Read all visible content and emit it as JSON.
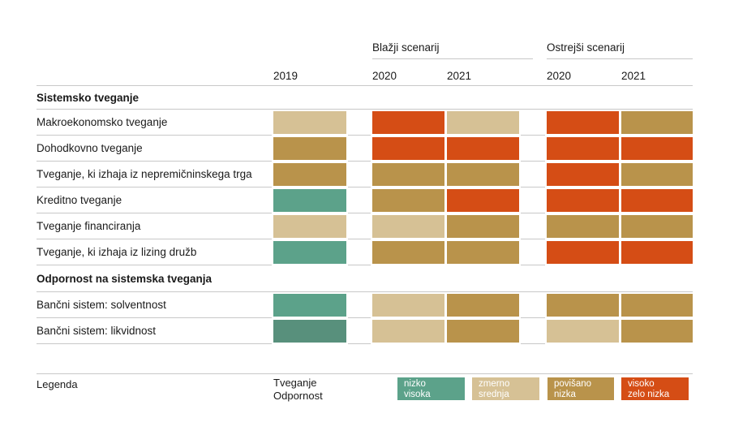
{
  "colors": {
    "teal": "#5CA28A",
    "teal_dark": "#58907C",
    "tan": "#D6C195",
    "gold": "#B9934B",
    "red": "#D54D15",
    "line": "#C8C8C8",
    "text": "#1A1A1A"
  },
  "header": {
    "scenario_groups": [
      {
        "label": "Blažji scenarij"
      },
      {
        "label": "Ostrejši scenarij"
      }
    ],
    "years": [
      "2019",
      "2020",
      "2021",
      "2020",
      "2021"
    ]
  },
  "sections": [
    {
      "title": "Sistemsko tveganje",
      "rows": [
        {
          "label": "Makroekonomsko tveganje",
          "cells": [
            "tan",
            "red",
            "tan",
            "red",
            "gold"
          ]
        },
        {
          "label": "Dohodkovno tveganje",
          "cells": [
            "gold",
            "red",
            "red",
            "red",
            "red"
          ]
        },
        {
          "label": "Tveganje, ki izhaja iz nepremičninskega trga",
          "cells": [
            "gold",
            "gold",
            "gold",
            "red",
            "gold"
          ]
        },
        {
          "label": "Kreditno tveganje",
          "cells": [
            "teal",
            "gold",
            "red",
            "red",
            "red"
          ]
        },
        {
          "label": "Tveganje financiranja",
          "cells": [
            "tan",
            "tan",
            "gold",
            "gold",
            "gold"
          ]
        },
        {
          "label": "Tveganje, ki izhaja iz lizing družb",
          "cells": [
            "teal",
            "gold",
            "gold",
            "red",
            "red"
          ]
        }
      ]
    },
    {
      "title": "Odpornost na sistemska tveganja",
      "rows": [
        {
          "label": "Bančni sistem: solventnost",
          "cells": [
            "teal",
            "tan",
            "gold",
            "gold",
            "gold"
          ]
        },
        {
          "label": "Bančni sistem: likvidnost",
          "cells": [
            "teal_dark",
            "tan",
            "gold",
            "tan",
            "gold"
          ]
        }
      ]
    }
  ],
  "legend": {
    "title": "Legenda",
    "axis_line1": "Tveganje",
    "axis_line2": "Odpornost",
    "items": [
      {
        "color": "teal",
        "risk": "nizko",
        "resilience": "visoka"
      },
      {
        "color": "tan",
        "risk": "zmerno",
        "resilience": "srednja"
      },
      {
        "color": "gold",
        "risk": "povišano",
        "resilience": "nizka"
      },
      {
        "color": "red",
        "risk": "visoko",
        "resilience": "zelo nizka"
      }
    ]
  },
  "chart_data": {
    "type": "heatmap",
    "columns": [
      "2019",
      "Blažji scenarij 2020",
      "Blažji scenarij 2021",
      "Ostrejši scenarij 2020",
      "Ostrejši scenarij 2021"
    ],
    "rows": [
      "Makroekonomsko tveganje",
      "Dohodkovno tveganje",
      "Tveganje, ki izhaja iz nepremičninskega trga",
      "Kreditno tveganje",
      "Tveganje financiranja",
      "Tveganje, ki izhaja iz lizing družb",
      "Bančni sistem: solventnost",
      "Bančni sistem: likvidnost"
    ],
    "values": [
      [
        "zmerno",
        "visoko",
        "zmerno",
        "visoko",
        "povišano"
      ],
      [
        "povišano",
        "visoko",
        "visoko",
        "visoko",
        "visoko"
      ],
      [
        "povišano",
        "povišano",
        "povišano",
        "visoko",
        "povišano"
      ],
      [
        "nizko",
        "povišano",
        "visoko",
        "visoko",
        "visoko"
      ],
      [
        "zmerno",
        "zmerno",
        "povišano",
        "povišano",
        "povišano"
      ],
      [
        "nizko",
        "povišano",
        "povišano",
        "visoko",
        "visoko"
      ],
      [
        "visoka",
        "srednja",
        "nizka",
        "nizka",
        "nizka"
      ],
      [
        "visoka",
        "srednja",
        "nizka",
        "srednja",
        "nizka"
      ]
    ],
    "legend_scale_risk": [
      "nizko",
      "zmerno",
      "povišano",
      "visoko"
    ],
    "legend_scale_resilience": [
      "visoka",
      "srednja",
      "nizka",
      "zelo nizka"
    ],
    "legend_position": "bottom",
    "grid": true
  }
}
